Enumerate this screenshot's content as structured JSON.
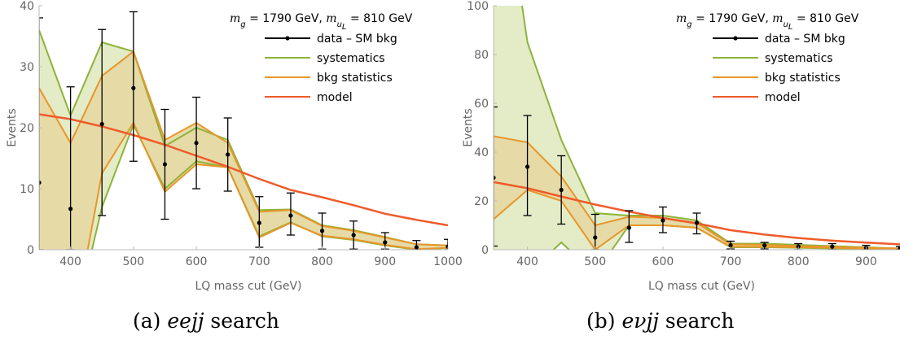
{
  "colors": {
    "data": "#000000",
    "systematics": "#8db33a",
    "systematics_fill": "#e3ecc7",
    "bkg_statistics": "#e8962a",
    "bkg_statistics_fill": "#e5d8a3",
    "model": "#ef5b2b",
    "axis": "#bbbbbb"
  },
  "chart_data": [
    {
      "type": "line",
      "panel": "a",
      "xlabel": "LQ mass cut (GeV)",
      "ylabel": "Events",
      "xlim": [
        350,
        1000
      ],
      "ylim": [
        0,
        40
      ],
      "xticks": [
        400,
        500,
        600,
        700,
        800,
        900,
        1000
      ],
      "yticks": [
        0,
        10,
        20,
        30,
        40
      ],
      "annotation": {
        "g_label": "m",
        "g_sub": "g",
        "g_val": " = 1790 GeV, ",
        "u_label": "m",
        "u_sub": "u",
        "u_subsub": "L",
        "u_val": " = 810 GeV"
      },
      "legend": {
        "position": "top-right",
        "entries": [
          "data – SM bkg",
          "systematics",
          "bkg statistics",
          "model"
        ]
      },
      "caption": {
        "label": "(a)",
        "word": "eejj",
        "rest": " search"
      },
      "x": [
        350,
        400,
        450,
        500,
        550,
        600,
        650,
        700,
        750,
        800,
        850,
        900,
        950,
        1000
      ],
      "series": [
        {
          "name": "data – SM bkg",
          "kind": "errorbar",
          "y": [
            11,
            6.7,
            20.6,
            26.5,
            14,
            17.5,
            15.6,
            4.4,
            5.6,
            3.1,
            2.4,
            1.2,
            0.4,
            0.5
          ],
          "err_lo": [
            11,
            6.7,
            15,
            12,
            9,
            7.5,
            6,
            4,
            3.2,
            3,
            2.3,
            1.1,
            0.4,
            0.5
          ],
          "err_hi": [
            27,
            20,
            15.5,
            12.5,
            9,
            7.5,
            6,
            4.3,
            3.7,
            2.9,
            2.3,
            1.6,
            1.1,
            1.2
          ]
        },
        {
          "name": "systematics",
          "kind": "band",
          "upper": [
            36,
            22,
            34,
            32.5,
            17,
            20,
            18,
            6.5,
            6.6,
            4,
            3.2,
            2.1,
            0.9,
            0.7
          ],
          "lower": [
            0,
            -15,
            7,
            20.5,
            10,
            14.5,
            13.5,
            2.2,
            4.5,
            2.2,
            1.6,
            0.7,
            0,
            0.3
          ]
        },
        {
          "name": "bkg statistics",
          "kind": "band",
          "upper": [
            26.5,
            17.5,
            28.5,
            32.5,
            18,
            20.8,
            17.5,
            6.2,
            6.5,
            3.9,
            3.1,
            2.0,
            0.9,
            0.7
          ],
          "lower": [
            0,
            -15,
            12.5,
            20.8,
            9.5,
            14.0,
            13.5,
            2.0,
            4.4,
            2.3,
            1.7,
            0.8,
            0.1,
            0.3
          ]
        },
        {
          "name": "model",
          "kind": "line",
          "y": [
            22.2,
            21.4,
            20.2,
            18.8,
            17.2,
            15.4,
            13.6,
            11.6,
            9.8,
            8.6,
            7.3,
            5.9,
            4.9,
            4.0
          ]
        }
      ]
    },
    {
      "type": "line",
      "panel": "b",
      "xlabel": "LQ mass cut (GeV)",
      "ylabel": "Events",
      "xlim": [
        350,
        950
      ],
      "ylim": [
        0,
        100
      ],
      "xticks": [
        400,
        500,
        600,
        700,
        800,
        900
      ],
      "yticks": [
        0,
        20,
        40,
        60,
        80,
        100
      ],
      "annotation": {
        "g_label": "m",
        "g_sub": "g",
        "g_val": " = 1790 GeV, ",
        "u_label": "m",
        "u_sub": "u",
        "u_subsub": "L",
        "u_val": " = 810 GeV"
      },
      "legend": {
        "position": "top-right",
        "entries": [
          "data – SM bkg",
          "systematics",
          "bkg statistics",
          "model"
        ]
      },
      "caption": {
        "label": "(b)",
        "word": "eνjj",
        "rest": " search"
      },
      "x": [
        350,
        400,
        450,
        500,
        550,
        600,
        650,
        700,
        750,
        800,
        850,
        900,
        950
      ],
      "series": [
        {
          "name": "data – SM bkg",
          "kind": "errorbar",
          "y": [
            29.5,
            34,
            24.5,
            5,
            9,
            12,
            11,
            1.8,
            1.8,
            1.3,
            1.3,
            0.8,
            0.5
          ],
          "err_lo": [
            28,
            20,
            14,
            5,
            6,
            5,
            4.5,
            1.5,
            1.5,
            1.3,
            1.3,
            0.8,
            0.5
          ],
          "err_hi": [
            29,
            21,
            14,
            9.5,
            7,
            5.5,
            4,
            1.7,
            1.2,
            1.2,
            1.2,
            1.0,
            0.8
          ]
        },
        {
          "name": "systematics",
          "kind": "band",
          "upper": [
            180,
            85,
            45,
            15,
            14,
            14,
            12,
            2.5,
            2.5,
            2.0,
            1.5,
            1.0,
            0.5
          ],
          "lower": [
            -20,
            -10,
            3,
            -10,
            10,
            10,
            9,
            1.0,
            1.0,
            0.8,
            0.5,
            0.3,
            0.2
          ]
        },
        {
          "name": "bkg statistics",
          "kind": "band",
          "upper": [
            46.5,
            44,
            30,
            10,
            13.5,
            13,
            11,
            2.2,
            2.0,
            1.5,
            1.2,
            0.8,
            0.5
          ],
          "lower": [
            12.5,
            24.5,
            20,
            0,
            10,
            10,
            9,
            1.2,
            1.2,
            1.0,
            0.8,
            0.4,
            0.2
          ]
        },
        {
          "name": "model",
          "kind": "line",
          "y": [
            27.7,
            25.2,
            21.8,
            18.5,
            15.6,
            13,
            10.8,
            8,
            6.2,
            4.8,
            3.7,
            2.9,
            2.2
          ]
        }
      ]
    }
  ]
}
